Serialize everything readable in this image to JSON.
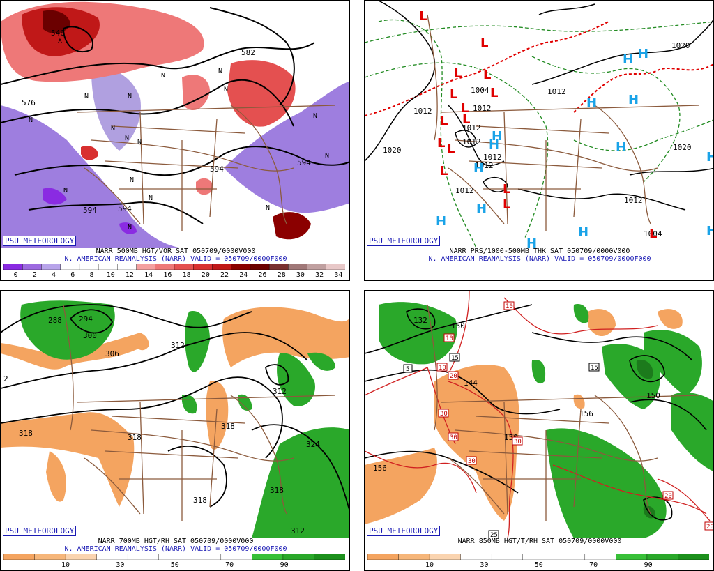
{
  "panels": [
    {
      "tag": "PSU METEOROLOGY",
      "line1": "NARR 500MB HGT/VOR SAT 050709/0000V000",
      "line2": "N. AMERICAN REANALYSIS (NARR) VALID = 050709/0000F000",
      "colorbar": {
        "colors": [
          "#8a2be2",
          "#9d6ae0",
          "#b8a4ea",
          "#ffffff",
          "#ffffff",
          "#ffffff",
          "#ffffff",
          "#f4a0a0",
          "#ee7878",
          "#e45050",
          "#d83030",
          "#c01818",
          "#8b0000",
          "#6b0000",
          "#7a3030",
          "#a07878",
          "#c0a0a0",
          "#e8c8c8"
        ],
        "labels": [
          "0",
          "2",
          "4",
          "6",
          "8",
          "10",
          "12",
          "14",
          "16",
          "18",
          "20",
          "22",
          "24",
          "26",
          "28",
          "30",
          "32",
          "34"
        ]
      },
      "contour_labels": [
        "546",
        "582",
        "576",
        "594",
        "594",
        "594",
        "594"
      ],
      "marker_labels": [
        "N",
        "N",
        "N",
        "N",
        "N",
        "N",
        "N",
        "N",
        "N",
        "N",
        "N",
        "N",
        "N",
        "N",
        "N",
        "N",
        "X"
      ]
    },
    {
      "tag": "PSU METEOROLOGY",
      "line1": "NARR PRS/1000-500MB THK SAT 050709/0000V000",
      "line2": "N. AMERICAN REANALYSIS (NARR) VALID = 050709/0000F000",
      "contour_labels": [
        "1020",
        "1012",
        "1012",
        "1012",
        "1012",
        "1012",
        "1012",
        "1020",
        "1012",
        "1004",
        "1012",
        "1012",
        "1004",
        "1020"
      ],
      "high_symbol": "H",
      "low_symbol": "L"
    },
    {
      "tag": "PSU METEOROLOGY",
      "line1": "NARR 700MB HGT/RH SAT 050709/0000V000",
      "line2": "N. AMERICAN REANALYSIS (NARR) VALID = 050709/0000F000",
      "colorbar": {
        "colors": [
          "#f4a460",
          "#f6b67a",
          "#fad4b0",
          "#ffffff",
          "#ffffff",
          "#ffffff",
          "#ffffff",
          "#ffffff",
          "#38c038",
          "#2aa82a",
          "#1c901c"
        ],
        "labels": [
          "10",
          "30",
          "50",
          "70",
          "90"
        ]
      },
      "contour_labels": [
        "288",
        "294",
        "300",
        "306",
        "312",
        "318",
        "318",
        "318",
        "318",
        "324",
        "318",
        "312",
        "312",
        "2"
      ]
    },
    {
      "tag": "PSU METEOROLOGY",
      "line1": "NARR 850MB HGT/T/RH SAT 050709/0000V000",
      "colorbar": {
        "colors": [
          "#f4a460",
          "#f6b67a",
          "#fad4b0",
          "#ffffff",
          "#ffffff",
          "#ffffff",
          "#ffffff",
          "#ffffff",
          "#38c038",
          "#2aa82a",
          "#1c901c"
        ],
        "labels": [
          "10",
          "30",
          "50",
          "70",
          "90"
        ]
      },
      "contour_labels": [
        "132",
        "144",
        "150",
        "156",
        "156",
        "150",
        "150"
      ],
      "temp_labels": [
        "10",
        "10",
        "10",
        "15",
        "15",
        "5",
        "20",
        "30",
        "30",
        "30",
        "25",
        "20",
        "20",
        "30"
      ]
    }
  ]
}
